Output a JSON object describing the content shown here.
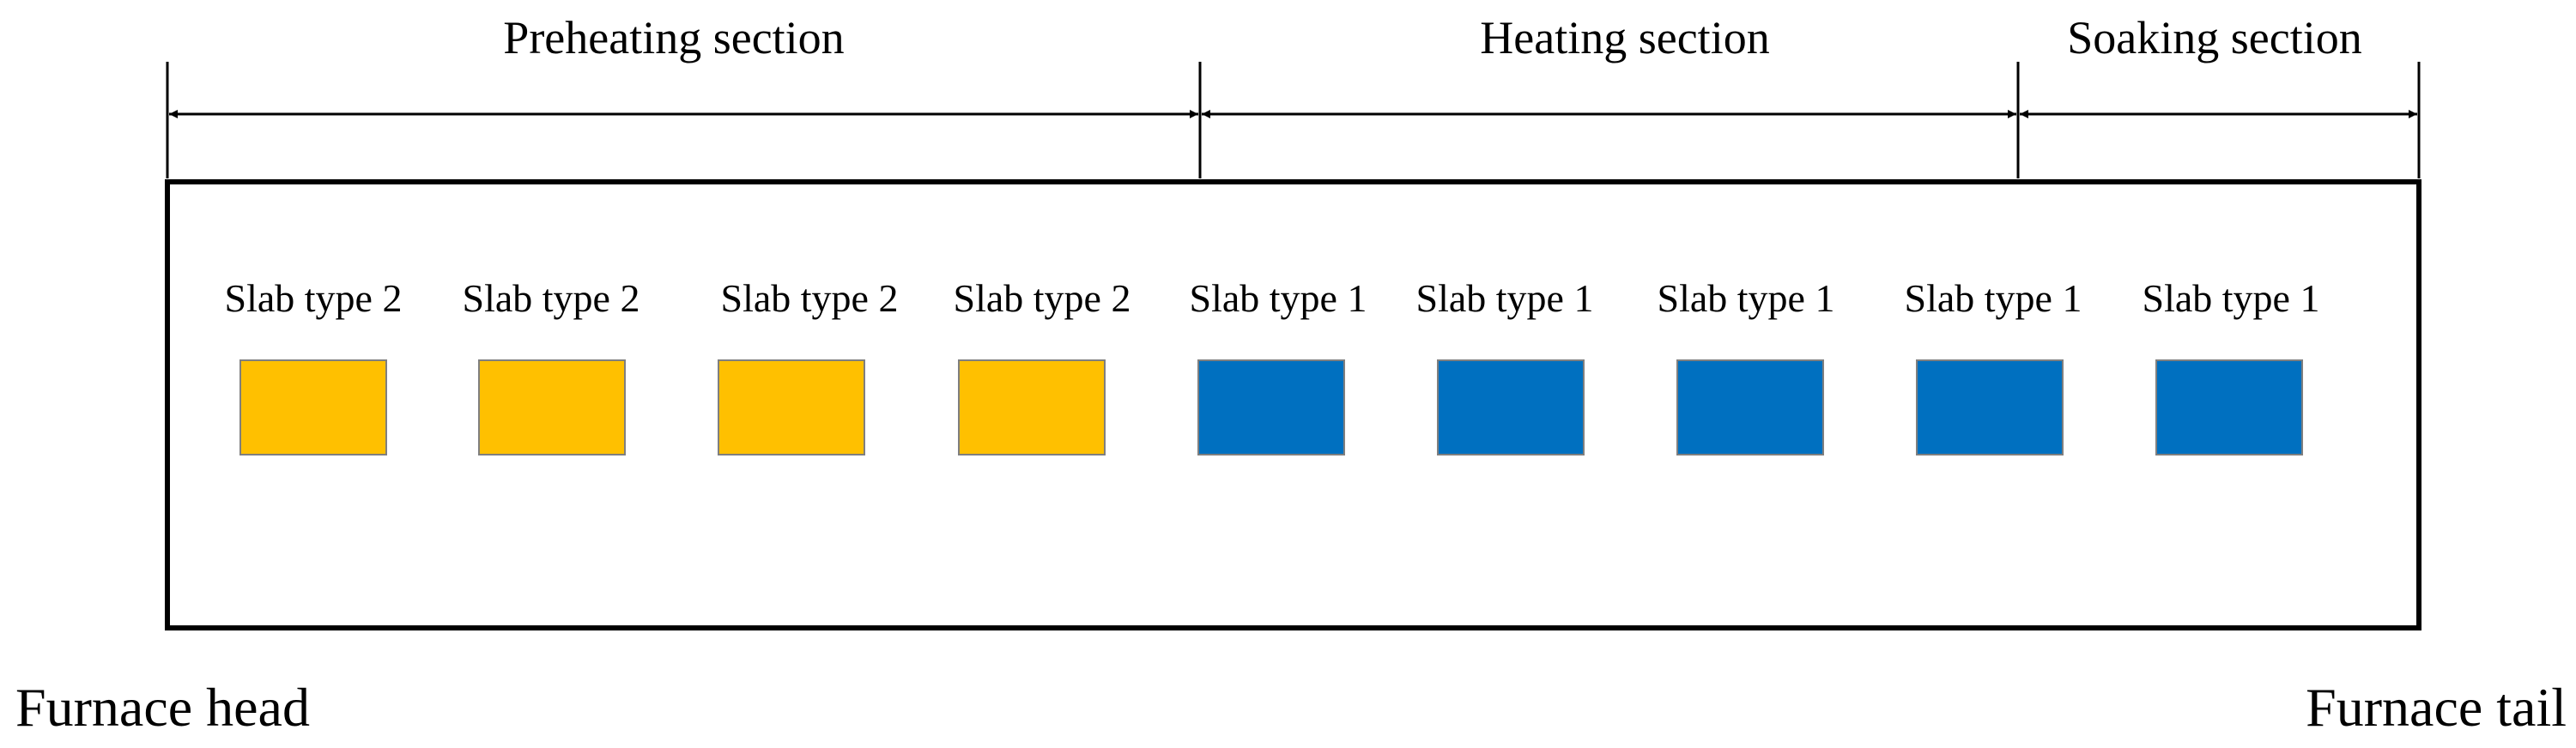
{
  "sections": [
    {
      "label": "Preheating section"
    },
    {
      "label": "Heating section"
    },
    {
      "label": "Soaking section"
    }
  ],
  "slabs": [
    {
      "label": "Slab type 2",
      "type": 2
    },
    {
      "label": "Slab type 2",
      "type": 2
    },
    {
      "label": "Slab type 2",
      "type": 2
    },
    {
      "label": "Slab type 2",
      "type": 2
    },
    {
      "label": "Slab type 1",
      "type": 1
    },
    {
      "label": "Slab type 1",
      "type": 1
    },
    {
      "label": "Slab type 1",
      "type": 1
    },
    {
      "label": "Slab type 1",
      "type": 1
    },
    {
      "label": "Slab type 1",
      "type": 1
    }
  ],
  "colors": {
    "slab_type_1": "#0070C0",
    "slab_type_2": "#FFC000"
  },
  "furnace": {
    "head_label": "Furnace head",
    "tail_label": "Furnace tail"
  }
}
